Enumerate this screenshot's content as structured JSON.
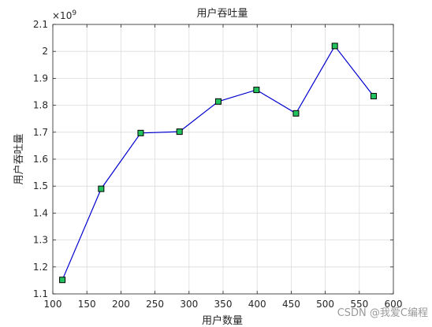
{
  "chart_data": {
    "type": "line",
    "title": "用户吞吐量",
    "xlabel": "用户数量",
    "ylabel": "用户吞吐量",
    "y_exponent_base": "×10",
    "y_exponent_power": "9",
    "xlim": [
      100,
      600
    ],
    "ylim": [
      1.1,
      2.1
    ],
    "x_ticks": [
      100,
      150,
      200,
      250,
      300,
      350,
      400,
      450,
      500,
      550,
      600
    ],
    "y_ticks": [
      1.1,
      1.2,
      1.3,
      1.4,
      1.5,
      1.6,
      1.7,
      1.8,
      1.9,
      2.0,
      2.1
    ],
    "x_tick_labels": [
      "100",
      "150",
      "200",
      "250",
      "300",
      "350",
      "400",
      "450",
      "500",
      "550",
      "600"
    ],
    "y_tick_labels": [
      "1.1",
      "1.2",
      "1.3",
      "1.4",
      "1.5",
      "1.6",
      "1.7",
      "1.8",
      "1.9",
      "2",
      "2.1"
    ],
    "grid": true,
    "series": [
      {
        "x": [
          114,
          171,
          229,
          286,
          343,
          399,
          457,
          514,
          571
        ],
        "values": [
          1.152,
          1.49,
          1.697,
          1.702,
          1.814,
          1.857,
          1.77,
          2.02,
          1.834
        ],
        "line_color": "#0000cd",
        "marker": "square",
        "marker_face_color": "#22c35e",
        "marker_edge_color": "#000000"
      }
    ]
  },
  "watermark": "CSDN @我爱C编程"
}
